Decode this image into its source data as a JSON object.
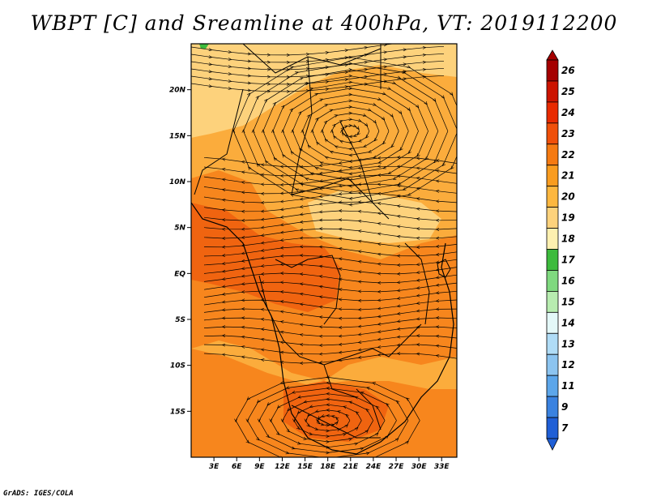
{
  "title": "WBPT [C] and Sreamline at 400hPa, VT: 2019112200",
  "credit": "GrADS: IGES/COLA",
  "map": {
    "lon_range": [
      0,
      35
    ],
    "lat_range": [
      -20,
      25
    ],
    "lat_ticks": [
      {
        "value": 20,
        "label": "20N"
      },
      {
        "value": 15,
        "label": "15N"
      },
      {
        "value": 10,
        "label": "10N"
      },
      {
        "value": 5,
        "label": "5N"
      },
      {
        "value": 0,
        "label": "EQ"
      },
      {
        "value": -5,
        "label": "5S"
      },
      {
        "value": -10,
        "label": "10S"
      },
      {
        "value": -15,
        "label": "15S"
      }
    ],
    "lon_ticks": [
      {
        "value": 3,
        "label": "3E"
      },
      {
        "value": 6,
        "label": "6E"
      },
      {
        "value": 9,
        "label": "9E"
      },
      {
        "value": 12,
        "label": "12E"
      },
      {
        "value": 15,
        "label": "15E"
      },
      {
        "value": 18,
        "label": "18E"
      },
      {
        "value": 21,
        "label": "21E"
      },
      {
        "value": 24,
        "label": "24E"
      },
      {
        "value": 27,
        "label": "27E"
      },
      {
        "value": 30,
        "label": "30E"
      },
      {
        "value": 33,
        "label": "33E"
      }
    ],
    "field_colors": {
      "light": "#fdd27c",
      "mid": "#fbac3c",
      "orange": "#f7861d",
      "dark": "#f06410"
    },
    "cyclone_center": {
      "lon": 21,
      "lat": 15.5
    },
    "anticyclone_center": {
      "lon": 18,
      "lat": -16
    }
  },
  "colorbar": {
    "levels": [
      {
        "label": "26",
        "color": "#a50000"
      },
      {
        "label": "25",
        "color": "#cc1400"
      },
      {
        "label": "24",
        "color": "#e82a00"
      },
      {
        "label": "23",
        "color": "#f0500a"
      },
      {
        "label": "22",
        "color": "#f57a12"
      },
      {
        "label": "21",
        "color": "#f99c1f"
      },
      {
        "label": "20",
        "color": "#fdb73f"
      },
      {
        "label": "19",
        "color": "#fdd27c"
      },
      {
        "label": "18",
        "color": "#fef0b0"
      },
      {
        "label": "17",
        "color": "#3dbb3d"
      },
      {
        "label": "16",
        "color": "#7fd97f"
      },
      {
        "label": "15",
        "color": "#b8ecb0"
      },
      {
        "label": "14",
        "color": "#e4f8f8"
      },
      {
        "label": "13",
        "color": "#b0dcf6"
      },
      {
        "label": "12",
        "color": "#8cc4f0"
      },
      {
        "label": "11",
        "color": "#5ca6ea"
      },
      {
        "label": "9",
        "color": "#3a82e0"
      },
      {
        "label": "7",
        "color": "#1f5fd6"
      }
    ]
  }
}
